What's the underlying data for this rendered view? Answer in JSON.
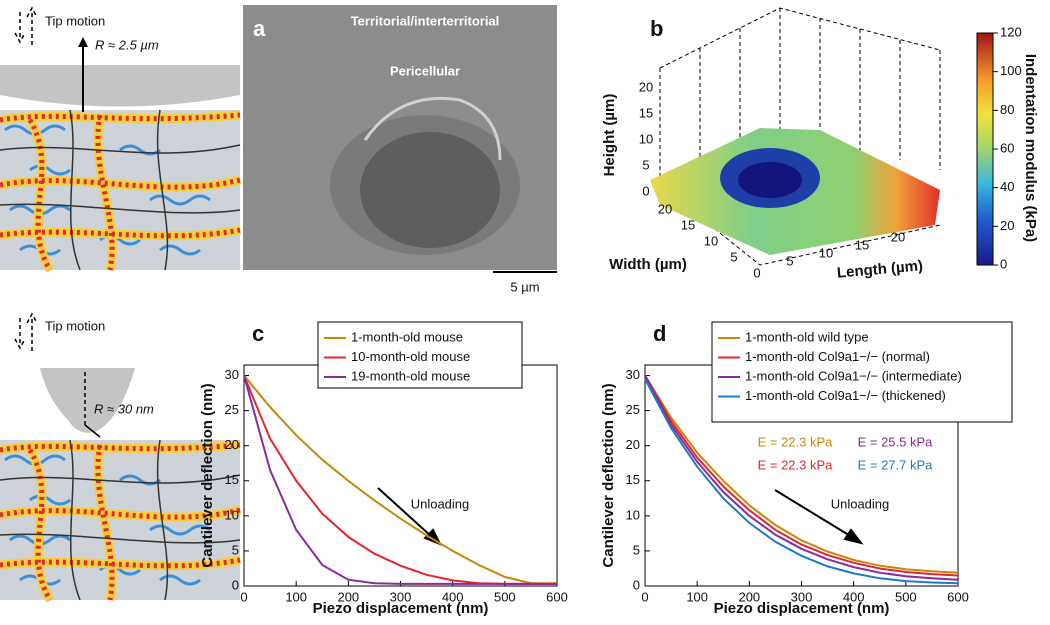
{
  "figure": {
    "diagram_top": {
      "tip_motion": "Tip motion",
      "radius": "R ≈ 2.5 µm"
    },
    "diagram_bottom": {
      "tip_motion": "Tip motion",
      "radius": "R ≈ 30 nm"
    },
    "panel_a": {
      "label": "a",
      "region_outer": "Territorial/interterritorial",
      "region_inner": "Pericellular",
      "scale_bar": "5 µm"
    },
    "panel_b": {
      "label": "b",
      "colorbar": {
        "label": "Indentation modulus (kPa)",
        "ticks": [
          0,
          20,
          40,
          60,
          80,
          100,
          120
        ]
      },
      "height": {
        "label": "Height (µm)",
        "ticks": [
          0,
          5,
          10,
          15,
          20
        ]
      },
      "width": {
        "label": "Width (µm)",
        "ticks": [
          20,
          15,
          10,
          5,
          0
        ]
      },
      "length": {
        "label": "Length (µm)",
        "ticks": [
          5,
          10,
          15,
          20
        ]
      }
    }
  },
  "chart_data": [
    {
      "type": "line",
      "panel_label": "c",
      "xlabel": "Piezo displacement (nm)",
      "ylabel": "Cantilever deflection (nm)",
      "x": [
        0,
        50,
        100,
        150,
        200,
        250,
        300,
        350,
        400,
        450,
        500,
        550,
        600
      ],
      "series": [
        {
          "name": "1-month-old mouse",
          "color": "#c8860a",
          "values": [
            30,
            25.5,
            21.5,
            18,
            15,
            12.2,
            9.6,
            7.2,
            5,
            3,
            1.3,
            0.4,
            0.4
          ]
        },
        {
          "name": "10-month-old mouse",
          "color": "#e3262d",
          "values": [
            30,
            21,
            15,
            10.3,
            7,
            4.6,
            2.9,
            1.6,
            0.8,
            0.4,
            0.3,
            0.3,
            0.3
          ]
        },
        {
          "name": "19-month-old mouse",
          "color": "#8b2a9a",
          "values": [
            30,
            16.5,
            8,
            3,
            0.9,
            0.4,
            0.3,
            0.3,
            0.3,
            0.3,
            0.3,
            0.3,
            0.3
          ]
        }
      ],
      "xlim": [
        0,
        600
      ],
      "ylim": [
        0,
        31.5
      ],
      "xticks": [
        0,
        100,
        200,
        300,
        400,
        500,
        600
      ],
      "yticks": [
        0,
        5,
        10,
        15,
        20,
        25,
        30
      ],
      "annotations": [
        {
          "text": "Unloading"
        }
      ]
    },
    {
      "type": "line",
      "panel_label": "d",
      "xlabel": "Piezo displacement (nm)",
      "ylabel": "Cantilever deflection (nm)",
      "x": [
        0,
        50,
        100,
        150,
        200,
        250,
        300,
        350,
        400,
        450,
        500,
        550,
        600
      ],
      "series": [
        {
          "name": "1-month-old wild type",
          "color": "#c8860a",
          "values": [
            30,
            24,
            19,
            15,
            11.5,
            8.7,
            6.5,
            4.9,
            3.7,
            2.9,
            2.4,
            2.1,
            1.9
          ]
        },
        {
          "name": "1-month-old Col9a1−/− (normal)",
          "color": "#e3262d",
          "values": [
            30,
            23.5,
            18.3,
            14.2,
            10.8,
            8,
            5.9,
            4.4,
            3.3,
            2.5,
            2,
            1.7,
            1.5
          ]
        },
        {
          "name": "1-month-old Col9a1−/− (intermediate)",
          "color": "#8b2a9a",
          "values": [
            30,
            23,
            17.7,
            13.4,
            10,
            7.3,
            5.3,
            3.8,
            2.7,
            1.9,
            1.4,
            1.1,
            0.9
          ]
        },
        {
          "name": "1-month-old Col9a1−/− (thickened)",
          "color": "#1f78c8",
          "values": [
            29.5,
            22.5,
            17,
            12.5,
            9,
            6.3,
            4.3,
            2.8,
            1.8,
            1.1,
            0.7,
            0.5,
            0.4
          ]
        }
      ],
      "xlim": [
        0,
        600
      ],
      "ylim": [
        0,
        31.5
      ],
      "xticks": [
        0,
        100,
        200,
        300,
        400,
        500,
        600
      ],
      "yticks": [
        0,
        5,
        10,
        15,
        20,
        25,
        30
      ],
      "annotations": [
        {
          "text": "E = 22.3 kPa",
          "color": "#c8860a"
        },
        {
          "text": "E = 25.5 kPa",
          "color": "#8b2a9a"
        },
        {
          "text": "E = 22.3 kPa",
          "color": "#e3262d"
        },
        {
          "text": "E = 27.7 kPa",
          "color": "#1f78c8"
        },
        {
          "text": "Unloading"
        }
      ]
    }
  ]
}
